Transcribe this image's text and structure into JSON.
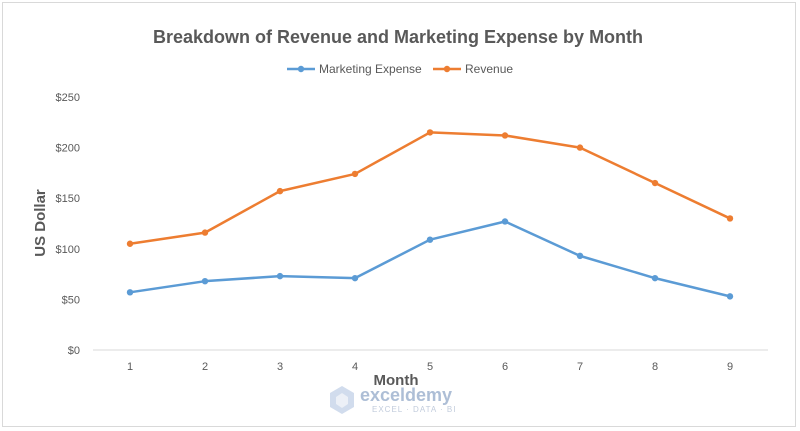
{
  "chart_data": {
    "type": "line",
    "title": "Breakdown of Revenue and Marketing Expense by Month",
    "xlabel": "Month",
    "ylabel": "US Dollar",
    "categories": [
      "1",
      "2",
      "3",
      "4",
      "5",
      "6",
      "7",
      "8",
      "9"
    ],
    "yticks": [
      "$0",
      "$50",
      "$100",
      "$150",
      "$200",
      "$250"
    ],
    "ylim": [
      0,
      250
    ],
    "grid": false,
    "legend_position": "top",
    "series": [
      {
        "name": "Marketing Expense",
        "color": "#5b9bd5",
        "values": [
          57,
          68,
          73,
          71,
          109,
          127,
          93,
          71,
          53
        ]
      },
      {
        "name": "Revenue",
        "color": "#ed7d31",
        "values": [
          105,
          116,
          157,
          174,
          215,
          212,
          200,
          165,
          130
        ]
      }
    ]
  },
  "watermark": {
    "brand": "exceldemy",
    "tagline": "EXCEL · DATA · BI"
  }
}
